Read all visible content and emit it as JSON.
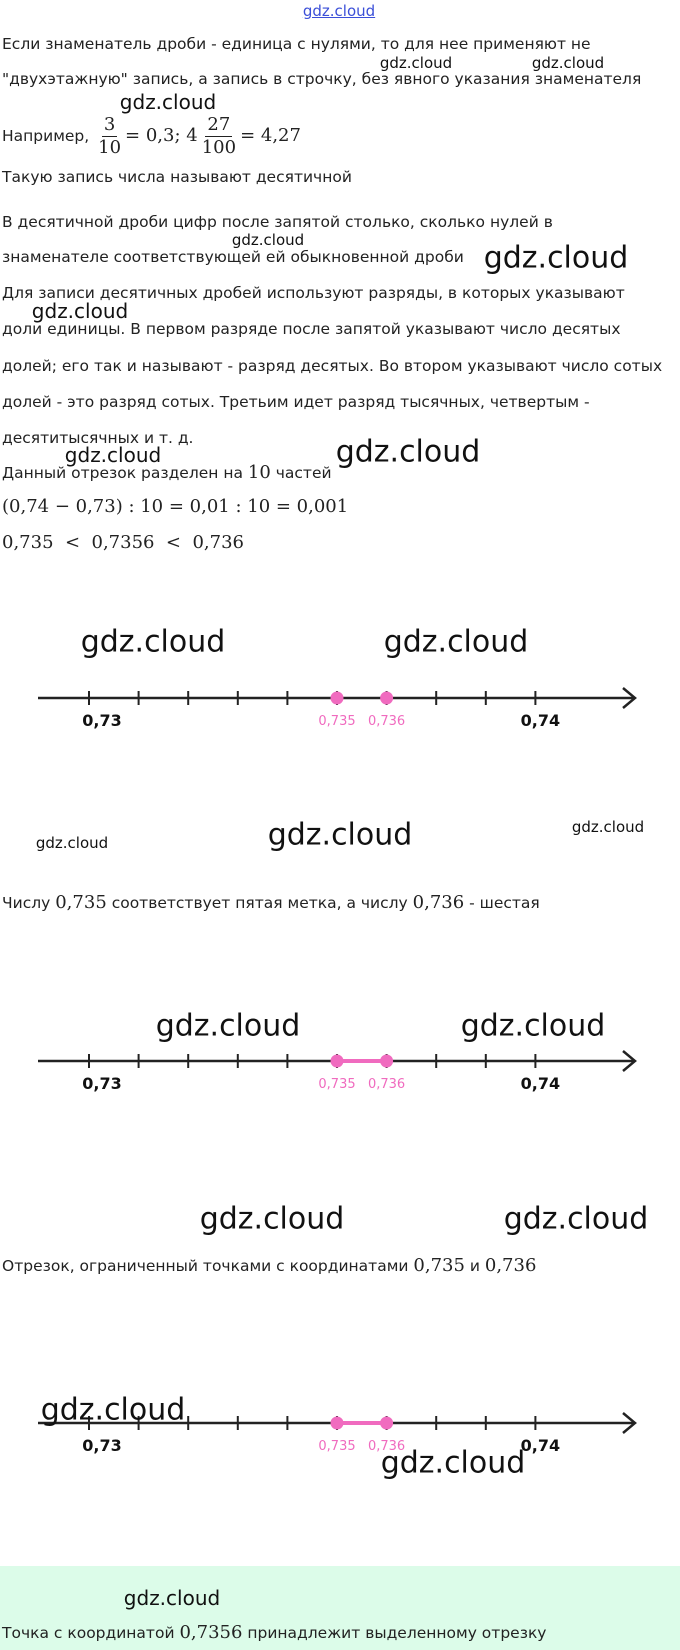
{
  "header": {
    "site": "gdz.cloud"
  },
  "intro": {
    "lines": [
      "Если знаменатель дроби - единица с нулями, то для нее применяют не",
      "\"двухэтажную\" запись, а запись в строчку, без явного указания знаменателя"
    ]
  },
  "example": {
    "parts": [
      "Например, ",
      {
        "num": "3",
        "den": "10"
      },
      {
        "math": "= 0,3; 4"
      },
      {
        "num": "27",
        "den": "100"
      },
      {
        "math": "= 4,27"
      }
    ]
  },
  "decimal_note": {
    "lines": [
      "Такую запись числа называют десятичной"
    ]
  },
  "digits_note": {
    "lines": [
      "В десятичной дроби цифр после запятой столько, сколько нулей в",
      "знаменателе соответствующей ей обыкновенной дроби"
    ]
  },
  "places_note": {
    "lines": [
      "Для записи десятичных дробей используют разряды, в которых указывают",
      "доли единицы. В первом разряде после запятой указывают число десятых",
      "долей; его так и называют - разряд десятых. Во втором указывают число сотых",
      "долей - это разряд сотых. Третьим идет разряд тысячных, четвертым -",
      "десятитысячных и т. д."
    ]
  },
  "segment_note": {
    "parts": [
      "Данный отрезок разделен на ",
      {
        "math": "10"
      },
      " частей"
    ]
  },
  "equation": {
    "parts": [
      {
        "math": "(0,74 − 0,73) : 10 = 0,01 : 10 = 0,001"
      }
    ]
  },
  "inequality": {
    "parts": [
      {
        "math": "0,735  <  0,7356  <  0,736"
      }
    ]
  },
  "marks_note": {
    "parts": [
      "Числу ",
      {
        "math": "0,735"
      },
      " соответствует пятая метка, а числу ",
      {
        "math": "0,736"
      },
      " - шестая"
    ]
  },
  "interval_note": {
    "parts": [
      "Отрезок, ограниченный точками с координатами ",
      {
        "math": "0,735"
      },
      " и ",
      {
        "math": "0,736"
      }
    ]
  },
  "answer": {
    "parts": [
      "Точка с координатой ",
      {
        "math": "0,7356"
      },
      " принадлежит выделенному отрезку"
    ]
  },
  "number_lines": [
    {
      "start_label": "0,73",
      "end_label": "0,74",
      "point_labels": [
        "0,735",
        "0,736"
      ],
      "highlight_segment": false
    },
    {
      "start_label": "0,73",
      "end_label": "0,74",
      "point_labels": [
        "0,735",
        "0,736"
      ],
      "highlight_segment": true
    },
    {
      "start_label": "0,73",
      "end_label": "0,74",
      "point_labels": [
        "0,735",
        "0,736"
      ],
      "highlight_segment": true
    }
  ],
  "watermarks": [
    "gdz.cloud",
    "gdz.cloud",
    "gdz.cloud",
    "gdz.cloud",
    "gdz.cloud",
    "gdz.cloud",
    "gdz.cloud",
    "gdz.cloud",
    "gdz.cloud",
    "gdz.cloud",
    "gdz.cloud",
    "gdz.cloud",
    "gdz.cloud",
    "gdz.cloud",
    "gdz.cloud",
    "gdz.cloud",
    "gdz.cloud",
    "gdz.cloud",
    "gdz.cloud",
    "gdz.cloud"
  ]
}
